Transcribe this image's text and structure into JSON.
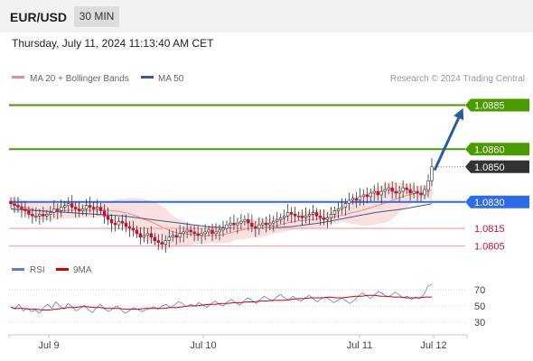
{
  "header": {
    "symbol": "EUR/USD",
    "timeframe": "30 MIN",
    "datetime": "Thursday, July 11, 2024 11:13:40 AM CET"
  },
  "colors": {
    "ma20": "#f08a8a",
    "bollinger_fill": "#fbd5d5",
    "ma50": "#3a5a9a",
    "resistance": "#4a9a00",
    "support": "#2e6be6",
    "support_weak": "#f4a6a6",
    "price_tag": "#333333",
    "arrow": "#2a5aa0",
    "rsi": "#5b7fd6",
    "rsi_ma": "#d40000",
    "candle": "#c8102e",
    "candle_up": "#2e7d32"
  },
  "chart_data": [
    {
      "type": "candlestick",
      "title": "EUR/USD 30 MIN",
      "legend": [
        {
          "label": "MA 20 + Bollinger Bands",
          "color": "#f08a8a"
        },
        {
          "label": "MA 50",
          "color": "#3a5a9a"
        }
      ],
      "watermark": "Research © 2024 Trading Central",
      "x_ticks": [
        "Jul 9",
        "Jul 10",
        "Jul 11",
        "Jul 12"
      ],
      "ylim": [
        1.0795,
        1.0895
      ],
      "grid": false,
      "levels": [
        {
          "value": 1.0885,
          "label": "1.0885",
          "kind": "resistance"
        },
        {
          "value": 1.086,
          "label": "1.0860",
          "kind": "resistance"
        },
        {
          "value": 1.085,
          "label": "1.0850",
          "kind": "last"
        },
        {
          "value": 1.083,
          "label": "1.0830",
          "kind": "pivot"
        },
        {
          "value": 1.0815,
          "label": "1.0815",
          "kind": "support"
        },
        {
          "value": 1.0805,
          "label": "1.0805",
          "kind": "support"
        }
      ],
      "close_series": [
        1.0829,
        1.0828,
        1.0827,
        1.0826,
        1.0825,
        1.0823,
        1.0822,
        1.0822,
        1.0823,
        1.0822,
        1.0823,
        1.0824,
        1.0826,
        1.0825,
        1.0827,
        1.0828,
        1.0829,
        1.0827,
        1.0826,
        1.0825,
        1.0826,
        1.0828,
        1.0827,
        1.0826,
        1.0827,
        1.0825,
        1.0822,
        1.082,
        1.0818,
        1.0817,
        1.0819,
        1.0818,
        1.0816,
        1.0815,
        1.0814,
        1.0812,
        1.081,
        1.0811,
        1.0812,
        1.081,
        1.0808,
        1.0807,
        1.0806,
        1.0808,
        1.081,
        1.0811,
        1.081,
        1.0812,
        1.0813,
        1.0814,
        1.0813,
        1.0812,
        1.0811,
        1.0812,
        1.0813,
        1.0814,
        1.0812,
        1.0813,
        1.0814,
        1.0815,
        1.0817,
        1.0818,
        1.0817,
        1.0818,
        1.0819,
        1.082,
        1.0818,
        1.0816,
        1.0815,
        1.0817,
        1.0818,
        1.0817,
        1.0818,
        1.0819,
        1.082,
        1.0821,
        1.0822,
        1.0824,
        1.0823,
        1.0822,
        1.0822,
        1.0821,
        1.0822,
        1.0823,
        1.0824,
        1.0822,
        1.0821,
        1.082,
        1.0821,
        1.0823,
        1.0825,
        1.0826,
        1.0827,
        1.0829,
        1.0831,
        1.0832,
        1.0831,
        1.0833,
        1.0834,
        1.0833,
        1.0835,
        1.0836,
        1.0834,
        1.0836,
        1.0837,
        1.0838,
        1.0836,
        1.0835,
        1.0836,
        1.0838,
        1.0837,
        1.0835,
        1.0836,
        1.0835,
        1.0834,
        1.0837,
        1.0842,
        1.085
      ],
      "ma50_series": [
        1.0826,
        1.0825,
        1.0824,
        1.0823,
        1.0822,
        1.082,
        1.0818,
        1.0816,
        1.0815,
        1.0815,
        1.0816,
        1.0818,
        1.0821,
        1.0824,
        1.0826,
        1.0829
      ],
      "forecast_arrow": {
        "from": 1.0848,
        "to": 1.0885
      }
    },
    {
      "type": "line",
      "legend": [
        {
          "label": "RSI",
          "color": "#5b7fd6"
        },
        {
          "label": "9MA",
          "color": "#d40000"
        }
      ],
      "y_ticks": [
        "70",
        "50",
        "30"
      ],
      "ylim": [
        20,
        80
      ],
      "rsi_series": [
        49,
        46,
        52,
        44,
        47,
        43,
        45,
        41,
        48,
        52,
        47,
        55,
        50,
        46,
        53,
        49,
        44,
        47,
        51,
        45,
        42,
        48,
        52,
        46,
        43,
        47,
        50,
        45,
        41,
        44,
        48,
        46,
        43,
        45,
        47,
        49,
        46,
        50,
        52,
        48,
        51,
        55,
        53,
        49,
        52,
        50,
        54,
        51,
        48,
        53,
        56,
        52,
        50,
        55,
        58,
        54,
        51,
        56,
        60,
        57,
        53,
        58,
        62,
        59,
        56,
        61,
        64,
        60,
        57,
        62,
        58,
        56,
        60,
        63,
        59,
        55,
        59,
        61,
        58,
        54,
        57,
        60,
        56,
        53,
        57,
        62,
        66,
        63,
        59,
        64,
        68,
        65,
        61,
        63,
        67,
        64,
        60,
        62,
        58,
        61,
        59,
        64,
        74,
        77
      ],
      "rsi_ma_series": [
        48,
        47,
        47,
        46,
        46,
        45,
        45,
        46,
        47,
        48,
        48,
        49,
        49,
        48,
        48,
        47,
        47,
        47,
        46,
        46,
        46,
        47,
        47,
        47,
        47,
        48,
        48,
        49,
        50,
        50,
        51,
        52,
        52,
        53,
        53,
        54,
        54,
        55,
        55,
        56,
        56,
        57,
        57,
        57,
        58,
        59,
        59,
        60,
        60,
        60,
        61,
        60,
        60,
        61,
        62,
        62,
        63,
        63,
        62,
        62,
        61,
        61,
        60,
        60,
        60,
        61,
        61
      ]
    }
  ]
}
